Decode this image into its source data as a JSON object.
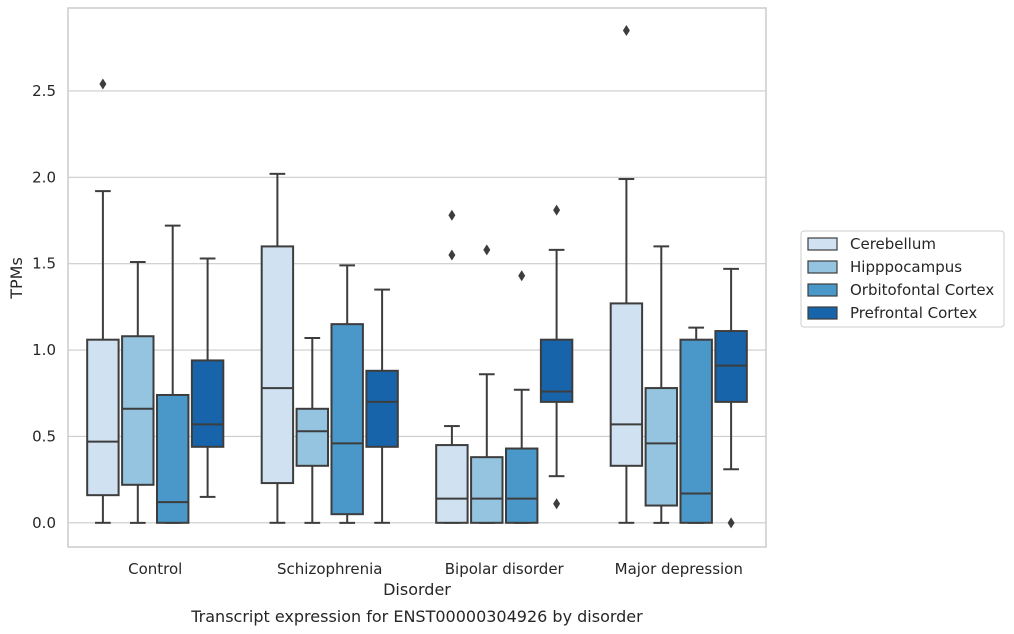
{
  "caption": "Transcript expression for ENST00000304926 by disorder",
  "colors": {
    "background": "#ffffff",
    "grid": "#cccccc",
    "frame": "#cccccc",
    "edge": "#3d3d3d",
    "series": [
      "#d0e1f2",
      "#94c4df",
      "#4a98c9",
      "#1764ab"
    ]
  },
  "chart_data": {
    "type": "box",
    "title": "",
    "xlabel": "Disorder",
    "ylabel": "TPMs",
    "ylim": [
      -0.14,
      2.98
    ],
    "yticks": [
      "0.0",
      "0.5",
      "1.0",
      "1.5",
      "2.0",
      "2.5"
    ],
    "grid": "horizontal",
    "legend_position": "right",
    "categories": [
      "Control",
      "Schizophrenia",
      "Bipolar disorder",
      "Major depression"
    ],
    "series": [
      {
        "name": "Cerebellum",
        "boxes": [
          {
            "whisker_low": 0.0,
            "q1": 0.16,
            "median": 0.47,
            "q3": 1.06,
            "whisker_high": 1.92,
            "outliers": [
              2.54
            ]
          },
          {
            "whisker_low": 0.0,
            "q1": 0.23,
            "median": 0.78,
            "q3": 1.6,
            "whisker_high": 2.02,
            "outliers": []
          },
          {
            "whisker_low": 0.0,
            "q1": 0.0,
            "median": 0.14,
            "q3": 0.45,
            "whisker_high": 0.56,
            "outliers": [
              1.55,
              1.78
            ]
          },
          {
            "whisker_low": 0.0,
            "q1": 0.33,
            "median": 0.57,
            "q3": 1.27,
            "whisker_high": 1.99,
            "outliers": [
              2.85
            ]
          }
        ]
      },
      {
        "name": "Hipppocampus",
        "boxes": [
          {
            "whisker_low": 0.0,
            "q1": 0.22,
            "median": 0.66,
            "q3": 1.08,
            "whisker_high": 1.51,
            "outliers": []
          },
          {
            "whisker_low": 0.0,
            "q1": 0.33,
            "median": 0.53,
            "q3": 0.66,
            "whisker_high": 1.07,
            "outliers": []
          },
          {
            "whisker_low": 0.0,
            "q1": 0.0,
            "median": 0.14,
            "q3": 0.38,
            "whisker_high": 0.86,
            "outliers": [
              1.58
            ]
          },
          {
            "whisker_low": 0.0,
            "q1": 0.1,
            "median": 0.46,
            "q3": 0.78,
            "whisker_high": 1.6,
            "outliers": []
          }
        ]
      },
      {
        "name": "Orbitofontal Cortex",
        "boxes": [
          {
            "whisker_low": 0.0,
            "q1": 0.0,
            "median": 0.12,
            "q3": 0.74,
            "whisker_high": 1.72,
            "outliers": []
          },
          {
            "whisker_low": 0.0,
            "q1": 0.05,
            "median": 0.46,
            "q3": 1.15,
            "whisker_high": 1.49,
            "outliers": []
          },
          {
            "whisker_low": 0.0,
            "q1": 0.0,
            "median": 0.14,
            "q3": 0.43,
            "whisker_high": 0.77,
            "outliers": [
              1.43
            ]
          },
          {
            "whisker_low": 0.0,
            "q1": 0.0,
            "median": 0.17,
            "q3": 1.06,
            "whisker_high": 1.13,
            "outliers": []
          }
        ]
      },
      {
        "name": "Prefrontal Cortex",
        "boxes": [
          {
            "whisker_low": 0.15,
            "q1": 0.44,
            "median": 0.57,
            "q3": 0.94,
            "whisker_high": 1.53,
            "outliers": []
          },
          {
            "whisker_low": 0.0,
            "q1": 0.44,
            "median": 0.7,
            "q3": 0.88,
            "whisker_high": 1.35,
            "outliers": []
          },
          {
            "whisker_low": 0.27,
            "q1": 0.7,
            "median": 0.76,
            "q3": 1.06,
            "whisker_high": 1.58,
            "outliers": [
              0.11,
              1.81
            ]
          },
          {
            "whisker_low": 0.31,
            "q1": 0.7,
            "median": 0.91,
            "q3": 1.11,
            "whisker_high": 1.47,
            "outliers": [
              0.0
            ]
          }
        ]
      }
    ]
  }
}
